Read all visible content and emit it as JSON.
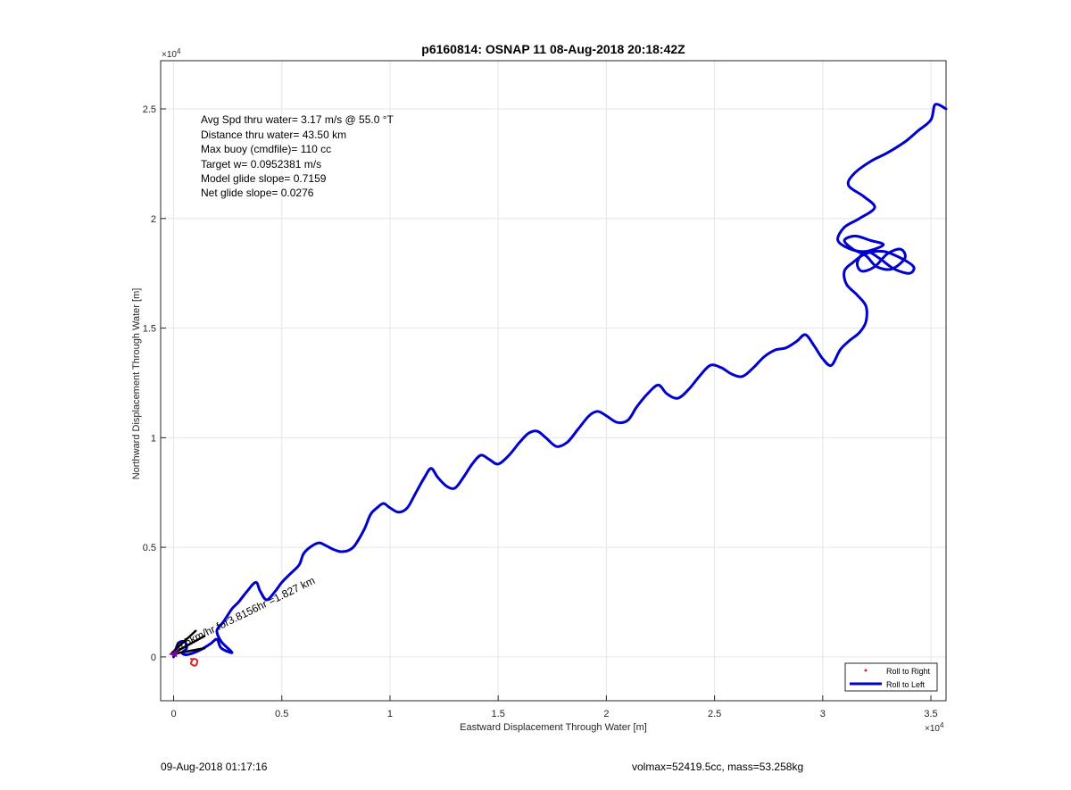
{
  "chart_data": {
    "type": "line",
    "title": "p6160814: OSNAP 11 08-Aug-2018 20:18:42Z",
    "xlabel": "Eastward Displacement Through Water [m]",
    "ylabel": "Northward Displacement Through Water [m]",
    "x_exponent": "×10",
    "x_exponent_power": "4",
    "y_exponent": "×10",
    "y_exponent_power": "4",
    "xlim": [
      -0.06,
      3.57
    ],
    "ylim": [
      -0.2,
      2.72
    ],
    "grid": true,
    "x_ticks": [
      {
        "value": 0,
        "label": "0"
      },
      {
        "value": 0.5,
        "label": "0.5"
      },
      {
        "value": 1,
        "label": "1"
      },
      {
        "value": 1.5,
        "label": "1.5"
      },
      {
        "value": 2,
        "label": "2"
      },
      {
        "value": 2.5,
        "label": "2.5"
      },
      {
        "value": 3,
        "label": "3"
      },
      {
        "value": 3.5,
        "label": "3.5"
      }
    ],
    "y_ticks": [
      {
        "value": 0,
        "label": "0"
      },
      {
        "value": 0.5,
        "label": "0.5"
      },
      {
        "value": 1,
        "label": "1"
      },
      {
        "value": 1.5,
        "label": "1.5"
      },
      {
        "value": 2,
        "label": "2"
      },
      {
        "value": 2.5,
        "label": "2.5"
      }
    ],
    "annotations": [
      "Avg Spd thru water=  3.17 m/s @  55.0 °T",
      "Distance thru water= 43.50 km",
      "Max buoy (cmdfile)= 110 cc",
      "Target w= 0.0952381 m/s",
      "Model glide slope= 0.7159",
      "Net glide slope= 0.0276"
    ],
    "drift_label": "0.5km/hr for3.8156hr =1.827 km",
    "legend": {
      "placement": "bottom-right",
      "entries": [
        {
          "label": "Roll to Right",
          "color": "#d62728",
          "marker": "dot"
        },
        {
          "label": "Roll to Left",
          "color": "#0000cc",
          "marker": "line"
        }
      ]
    },
    "series": [
      {
        "name": "Roll to Left",
        "color": "#0000cc",
        "x": [
          0.0,
          0.02,
          0.05,
          0.06,
          0.04,
          0.06,
          0.12,
          0.17,
          0.2,
          0.22,
          0.27,
          0.22,
          0.2,
          0.23,
          0.27,
          0.3,
          0.34,
          0.38,
          0.4,
          0.43,
          0.47,
          0.5,
          0.54,
          0.58,
          0.6,
          0.63,
          0.67,
          0.7,
          0.74,
          0.78,
          0.83,
          0.88,
          0.91,
          0.94,
          0.97,
          1.0,
          1.04,
          1.08,
          1.12,
          1.16,
          1.19,
          1.22,
          1.26,
          1.3,
          1.34,
          1.38,
          1.42,
          1.46,
          1.5,
          1.55,
          1.6,
          1.64,
          1.68,
          1.72,
          1.77,
          1.82,
          1.87,
          1.92,
          1.96,
          2.0,
          2.05,
          2.1,
          2.14,
          2.19,
          2.24,
          2.28,
          2.33,
          2.38,
          2.43,
          2.48,
          2.53,
          2.58,
          2.63,
          2.68,
          2.73,
          2.78,
          2.83,
          2.88,
          2.92,
          2.96,
          3.0,
          3.04,
          3.08,
          3.12,
          3.17,
          3.2,
          3.2,
          3.16,
          3.11,
          3.1,
          3.14,
          3.2,
          3.28,
          3.36,
          3.42,
          3.4,
          3.33,
          3.26,
          3.2,
          3.16,
          3.18,
          3.24,
          3.3,
          3.36,
          3.38,
          3.32,
          3.25,
          3.2,
          3.14,
          3.1,
          3.15,
          3.22,
          3.28,
          3.2,
          3.13,
          3.07,
          3.1,
          3.17,
          3.24,
          3.19,
          3.12,
          3.14,
          3.22,
          3.3,
          3.38,
          3.44,
          3.5,
          3.52,
          3.57
        ],
        "y": [
          0.0,
          0.06,
          0.07,
          0.04,
          0.02,
          0.01,
          0.03,
          0.06,
          0.08,
          0.04,
          0.02,
          0.07,
          0.12,
          0.16,
          0.22,
          0.25,
          0.3,
          0.34,
          0.3,
          0.26,
          0.3,
          0.34,
          0.38,
          0.42,
          0.47,
          0.5,
          0.52,
          0.51,
          0.49,
          0.48,
          0.5,
          0.58,
          0.65,
          0.68,
          0.7,
          0.68,
          0.66,
          0.68,
          0.75,
          0.82,
          0.86,
          0.82,
          0.78,
          0.77,
          0.82,
          0.88,
          0.92,
          0.9,
          0.88,
          0.92,
          0.98,
          1.02,
          1.03,
          1.0,
          0.96,
          0.98,
          1.04,
          1.1,
          1.12,
          1.1,
          1.07,
          1.08,
          1.14,
          1.2,
          1.24,
          1.2,
          1.18,
          1.22,
          1.28,
          1.33,
          1.32,
          1.29,
          1.28,
          1.32,
          1.37,
          1.4,
          1.41,
          1.44,
          1.47,
          1.42,
          1.36,
          1.33,
          1.4,
          1.44,
          1.48,
          1.53,
          1.6,
          1.65,
          1.7,
          1.76,
          1.8,
          1.84,
          1.85,
          1.82,
          1.78,
          1.75,
          1.77,
          1.82,
          1.85,
          1.8,
          1.76,
          1.78,
          1.84,
          1.86,
          1.82,
          1.77,
          1.78,
          1.83,
          1.86,
          1.9,
          1.92,
          1.9,
          1.88,
          1.85,
          1.86,
          1.9,
          1.96,
          2.0,
          2.05,
          2.1,
          2.15,
          2.2,
          2.26,
          2.3,
          2.35,
          2.4,
          2.45,
          2.52,
          2.5
        ]
      },
      {
        "name": "Roll to Right",
        "color": "#d62728",
        "x": [
          0.08,
          0.1,
          0.11,
          0.1,
          0.08,
          0.09
        ],
        "y": [
          -0.01,
          -0.01,
          -0.02,
          -0.04,
          -0.03,
          -0.01
        ]
      }
    ]
  },
  "footer": {
    "left": "09-Aug-2018 01:17:16",
    "right": "volmax=52419.5cc, mass=53.258kg"
  }
}
